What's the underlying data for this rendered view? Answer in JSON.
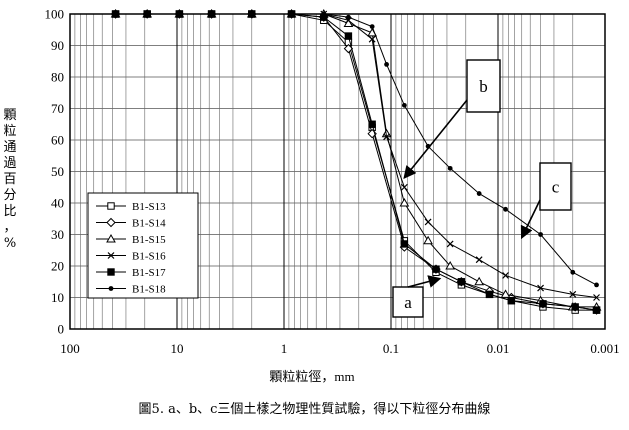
{
  "chart_data": {
    "type": "line",
    "title": "",
    "xlabel": "顆粒粒徑，mm",
    "ylabel": "顆粒通過百分比，%",
    "x_scale": "log",
    "x_reversed": true,
    "xlim": [
      100,
      0.001
    ],
    "ylim": [
      0,
      100
    ],
    "x_ticks": [
      "100",
      "10",
      "1",
      "0.1",
      "0.01",
      "0.001"
    ],
    "x_tick_values": [
      100,
      10,
      1,
      0.1,
      0.01,
      0.001
    ],
    "y_ticks": [
      0,
      10,
      20,
      30,
      40,
      50,
      60,
      70,
      80,
      90,
      100
    ],
    "grid": true,
    "legend_position": "bottom-left",
    "series": [
      {
        "name": "B1-S13",
        "marker": "square",
        "x": [
          37.5,
          19,
          9.5,
          4.75,
          2,
          0.85,
          0.425,
          0.25,
          0.15,
          0.075,
          0.038,
          0.022,
          0.012,
          0.0075,
          0.0038,
          0.0019,
          0.0012
        ],
        "y": [
          100,
          100,
          100,
          100,
          100,
          100,
          98,
          91,
          64,
          28,
          18,
          14,
          11,
          9,
          7,
          6,
          6
        ]
      },
      {
        "name": "B1-S14",
        "marker": "diamond",
        "x": [
          37.5,
          19,
          9.5,
          4.75,
          2,
          0.85,
          0.425,
          0.25,
          0.15,
          0.075,
          0.038,
          0.022,
          0.012,
          0.0075,
          0.0038,
          0.0019,
          0.0012
        ],
        "y": [
          100,
          100,
          100,
          100,
          100,
          100,
          99,
          89,
          62,
          26,
          19,
          15,
          12,
          10,
          8,
          7,
          6
        ]
      },
      {
        "name": "B1-S15",
        "marker": "triangle",
        "x": [
          37.5,
          19,
          9.5,
          4.75,
          2,
          0.85,
          0.425,
          0.25,
          0.15,
          0.11,
          0.075,
          0.045,
          0.028,
          0.015,
          0.0085,
          0.004,
          0.002,
          0.0012
        ],
        "y": [
          100,
          100,
          100,
          100,
          100,
          100,
          100,
          97,
          94,
          62,
          40,
          28,
          20,
          15,
          11,
          9,
          7,
          7
        ]
      },
      {
        "name": "B1-S16",
        "marker": "x",
        "x": [
          37.5,
          19,
          9.5,
          4.75,
          2,
          0.85,
          0.425,
          0.25,
          0.15,
          0.11,
          0.075,
          0.045,
          0.028,
          0.015,
          0.0085,
          0.004,
          0.002,
          0.0012
        ],
        "y": [
          100,
          100,
          100,
          100,
          100,
          100,
          100,
          98,
          92,
          61,
          45,
          34,
          27,
          22,
          17,
          13,
          11,
          10
        ]
      },
      {
        "name": "B1-S17",
        "marker": "filled-square",
        "x": [
          37.5,
          19,
          9.5,
          4.75,
          2,
          0.85,
          0.425,
          0.25,
          0.15,
          0.075,
          0.038,
          0.022,
          0.012,
          0.0075,
          0.0038,
          0.0019,
          0.0012
        ],
        "y": [
          100,
          100,
          100,
          100,
          100,
          100,
          99,
          93,
          65,
          27,
          19,
          15,
          11,
          9,
          8,
          7,
          6
        ]
      },
      {
        "name": "B1-S18",
        "marker": "dot",
        "x": [
          37.5,
          19,
          9.5,
          4.75,
          2,
          0.85,
          0.425,
          0.25,
          0.15,
          0.11,
          0.075,
          0.045,
          0.028,
          0.015,
          0.0085,
          0.004,
          0.002,
          0.0012
        ],
        "y": [
          100,
          100,
          100,
          100,
          100,
          100,
          100,
          99,
          96,
          84,
          71,
          58,
          51,
          43,
          38,
          30,
          18,
          14
        ]
      }
    ],
    "annotations": [
      {
        "label": "a",
        "target": [
          0.035,
          16
        ]
      },
      {
        "label": "b",
        "target": [
          0.075,
          48
        ]
      },
      {
        "label": "c",
        "target": [
          0.006,
          29
        ]
      }
    ]
  },
  "caption": "圖5. a、b、c三個土樣之物理性質試驗，得以下粒徑分布曲線"
}
